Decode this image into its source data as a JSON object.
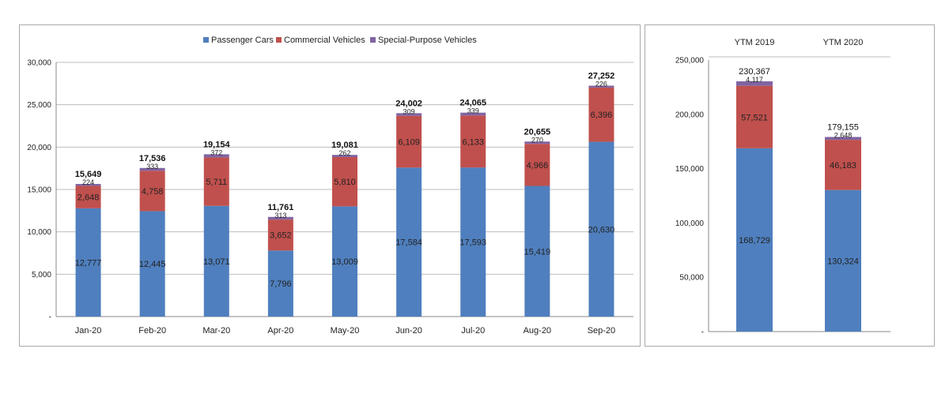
{
  "colors": {
    "passenger": "#4F7FBE",
    "commercial": "#C0504D",
    "special": "#8064A2"
  },
  "chart_data": [
    {
      "type": "bar",
      "stacked": true,
      "legend_position": "top",
      "grid": true,
      "categories": [
        "Jan-20",
        "Feb-20",
        "Mar-20",
        "Apr-20",
        "May-20",
        "Jun-20",
        "Jul-20",
        "Aug-20",
        "Sep-20"
      ],
      "series": [
        {
          "name": "Passenger Cars",
          "values": [
            12777,
            12445,
            13071,
            7796,
            13009,
            17584,
            17593,
            15419,
            20630
          ],
          "labels": [
            "12,777",
            "12,445",
            "13,071",
            "7,796",
            "13,009",
            "17,584",
            "17,593",
            "15,419",
            "20,630"
          ]
        },
        {
          "name": "Commercial Vehicles",
          "values": [
            2648,
            4758,
            5711,
            3652,
            5810,
            6109,
            6133,
            4966,
            6396
          ],
          "labels": [
            "2,648",
            "4,758",
            "5,711",
            "3,652",
            "5,810",
            "6,109",
            "6,133",
            "4,966",
            "6,396"
          ]
        },
        {
          "name": "Special-Purpose Vehicles",
          "values": [
            224,
            333,
            372,
            313,
            262,
            309,
            339,
            270,
            226
          ],
          "labels": [
            "224",
            "333",
            "372",
            "313",
            "262",
            "309",
            "339",
            "270",
            "226"
          ]
        }
      ],
      "totals": [
        "15,649",
        "17,536",
        "19,154",
        "11,761",
        "19,081",
        "24,002",
        "24,065",
        "20,655",
        "27,252"
      ],
      "ylim": [
        0,
        30000
      ],
      "yticks": [
        0,
        5000,
        10000,
        15000,
        20000,
        25000,
        30000
      ],
      "ytick_labels": [
        "-",
        "5,000",
        "10,000",
        "15,000",
        "20,000",
        "25,000",
        "30,000"
      ]
    },
    {
      "type": "bar",
      "stacked": true,
      "grid": false,
      "categories": [
        "YTM 2019",
        "YTM 2020"
      ],
      "series": [
        {
          "name": "Passenger Cars",
          "values": [
            168729,
            130324
          ],
          "labels": [
            "168,729",
            "130,324"
          ]
        },
        {
          "name": "Commercial Vehicles",
          "values": [
            57521,
            46183
          ],
          "labels": [
            "57,521",
            "46,183"
          ]
        },
        {
          "name": "Special-Purpose Vehicles",
          "values": [
            4117,
            2648
          ],
          "labels": [
            "4,117",
            "2,648"
          ]
        }
      ],
      "totals": [
        "230,367",
        "179,155"
      ],
      "ylim": [
        0,
        250000
      ],
      "yticks": [
        0,
        50000,
        100000,
        150000,
        200000,
        250000
      ],
      "ytick_labels": [
        "-",
        "50,000",
        "100,000",
        "150,000",
        "200,000",
        "250,000"
      ]
    }
  ]
}
